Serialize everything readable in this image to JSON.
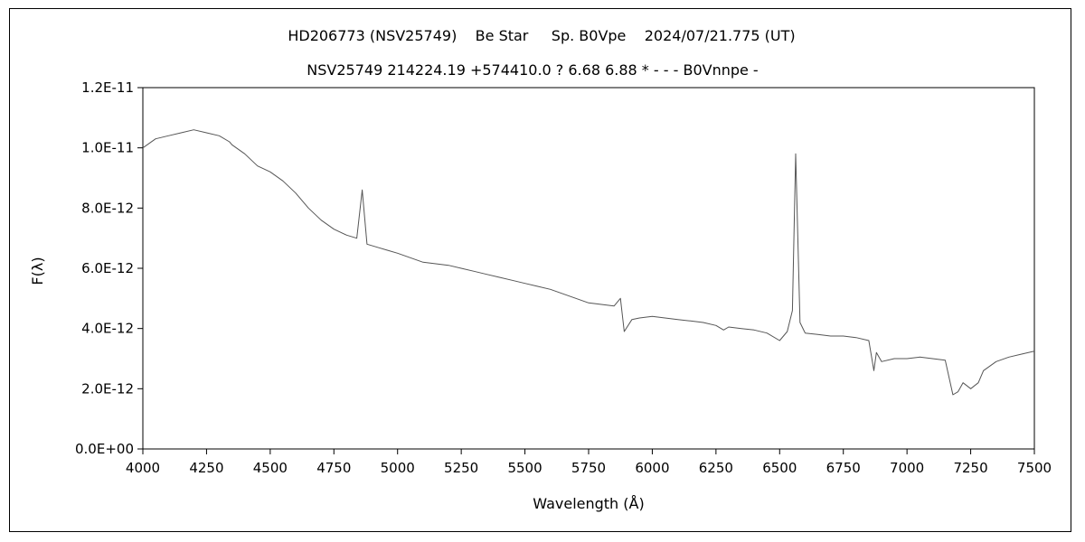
{
  "chart_data": {
    "type": "line",
    "title": "HD206773 (NSV25749)    Be Star     Sp. B0Vpe    2024/07/21.775 (UT)",
    "subtitle": "NSV25749 214224.19 +574410.0 ? 6.68 6.88 * - - - B0Vnnpe -",
    "xlabel": "Wavelength (Å)",
    "ylabel": "F(λ)",
    "xlim": [
      4000,
      7500
    ],
    "ylim": [
      0,
      1.2e-11
    ],
    "xticks": [
      4000,
      4250,
      4500,
      4750,
      5000,
      5250,
      5500,
      5750,
      6000,
      6250,
      6500,
      6750,
      7000,
      7250,
      7500
    ],
    "xtick_labels": [
      "4000",
      "4250",
      "4500",
      "4750",
      "5000",
      "5250",
      "5500",
      "5750",
      "6000",
      "6250",
      "6500",
      "6750",
      "7000",
      "7250",
      "7500"
    ],
    "yticks": [
      0,
      2e-12,
      4e-12,
      6e-12,
      8e-12,
      1e-11,
      1.2e-11
    ],
    "ytick_labels": [
      "0.0E+00",
      "2.0E-12",
      "4.0E-12",
      "6.0E-12",
      "8.0E-12",
      "1.0E-11",
      "1.2E-11"
    ],
    "grid": false,
    "line_color": "#555555",
    "series": [
      {
        "x": [
          4000,
          4050,
          4100,
          4150,
          4200,
          4250,
          4300,
          4340,
          4350,
          4400,
          4450,
          4500,
          4550,
          4600,
          4650,
          4700,
          4750,
          4800,
          4840,
          4861,
          4880,
          4920,
          4960,
          5000,
          5050,
          5100,
          5150,
          5200,
          5250,
          5300,
          5350,
          5400,
          5450,
          5500,
          5550,
          5600,
          5650,
          5700,
          5750,
          5800,
          5850,
          5875,
          5890,
          5920,
          5950,
          6000,
          6050,
          6100,
          6150,
          6200,
          6250,
          6280,
          6300,
          6350,
          6400,
          6450,
          6500,
          6530,
          6550,
          6563,
          6580,
          6600,
          6650,
          6700,
          6750,
          6800,
          6850,
          6870,
          6880,
          6900,
          6950,
          7000,
          7050,
          7100,
          7150,
          7180,
          7200,
          7220,
          7250,
          7280,
          7300,
          7350,
          7400,
          7450,
          7500
        ],
        "y": [
          1e-11,
          1.03e-11,
          1.04e-11,
          1.05e-11,
          1.06e-11,
          1.05e-11,
          1.04e-11,
          1.02e-11,
          1.01e-11,
          9.8e-12,
          9.4e-12,
          9.2e-12,
          8.9e-12,
          8.5e-12,
          8e-12,
          7.6e-12,
          7.3e-12,
          7.1e-12,
          7e-12,
          8.6e-12,
          6.8e-12,
          6.7e-12,
          6.6e-12,
          6.5e-12,
          6.35e-12,
          6.2e-12,
          6.15e-12,
          6.1e-12,
          6e-12,
          5.9e-12,
          5.8e-12,
          5.7e-12,
          5.6e-12,
          5.5e-12,
          5.4e-12,
          5.3e-12,
          5.15e-12,
          5e-12,
          4.85e-12,
          4.8e-12,
          4.75e-12,
          5e-12,
          3.9e-12,
          4.3e-12,
          4.35e-12,
          4.4e-12,
          4.35e-12,
          4.3e-12,
          4.25e-12,
          4.2e-12,
          4.1e-12,
          3.95e-12,
          4.05e-12,
          4e-12,
          3.95e-12,
          3.85e-12,
          3.6e-12,
          3.9e-12,
          4.6e-12,
          9.8e-12,
          4.2e-12,
          3.85e-12,
          3.8e-12,
          3.75e-12,
          3.75e-12,
          3.7e-12,
          3.6e-12,
          2.6e-12,
          3.2e-12,
          2.9e-12,
          3e-12,
          3e-12,
          3.05e-12,
          3e-12,
          2.95e-12,
          1.8e-12,
          1.9e-12,
          2.2e-12,
          2e-12,
          2.2e-12,
          2.6e-12,
          2.9e-12,
          3.05e-12,
          3.15e-12,
          3.25e-12
        ]
      }
    ]
  }
}
